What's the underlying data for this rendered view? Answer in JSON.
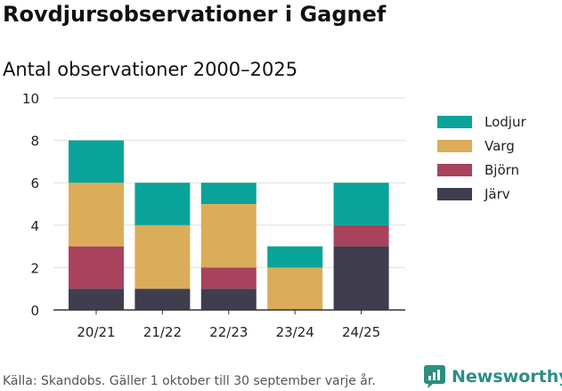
{
  "header": {
    "title": "Rovdjursobservationer i Gagnef",
    "subtitle": "Antal observationer 2000–2025"
  },
  "footer": {
    "source": "Källa: Skandobs. Gäller 1 oktober till 30 september varje år.",
    "brand": "Newsworthy"
  },
  "colors": {
    "Lodjur": "#0aa39a",
    "Varg": "#dbad5a",
    "Björn": "#a8425d",
    "Järv": "#3f3d4e",
    "brand": "#2b8f82"
  },
  "chart_data": {
    "type": "bar",
    "stacked": true,
    "title": "Antal observationer 2000–2025",
    "xlabel": "",
    "ylabel": "",
    "ylim": [
      0,
      10
    ],
    "yticks": [
      0,
      2,
      4,
      6,
      8,
      10
    ],
    "grid": true,
    "legend_position": "right",
    "categories": [
      "20/21",
      "21/22",
      "22/23",
      "23/24",
      "24/25"
    ],
    "series": [
      {
        "name": "Järv",
        "values": [
          1,
          1,
          1,
          0,
          3
        ]
      },
      {
        "name": "Björn",
        "values": [
          2,
          0,
          1,
          0,
          1
        ]
      },
      {
        "name": "Varg",
        "values": [
          3,
          3,
          3,
          2,
          0
        ]
      },
      {
        "name": "Lodjur",
        "values": [
          2,
          2,
          1,
          1,
          2
        ]
      }
    ],
    "legend_order": [
      "Lodjur",
      "Varg",
      "Björn",
      "Järv"
    ]
  }
}
